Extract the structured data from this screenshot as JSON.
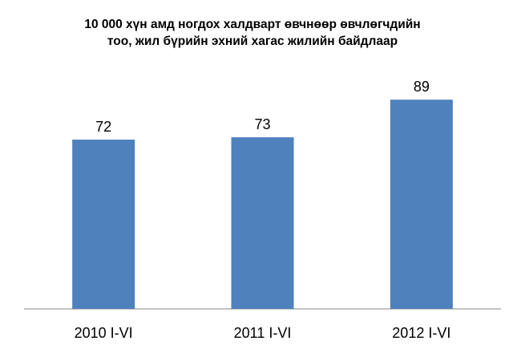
{
  "chart_data": {
    "type": "bar",
    "title": "10 000 хүн амд ногдох халдварт өвчнөөр өвчлөгчдийн\nтоо, жил бүрийн эхний хагас жилийн байдлаар",
    "categories": [
      "2010 I-VI",
      "2011 I-VI",
      "2012 I-VI"
    ],
    "values": [
      72,
      73,
      89
    ],
    "color": "#4f81bd"
  }
}
